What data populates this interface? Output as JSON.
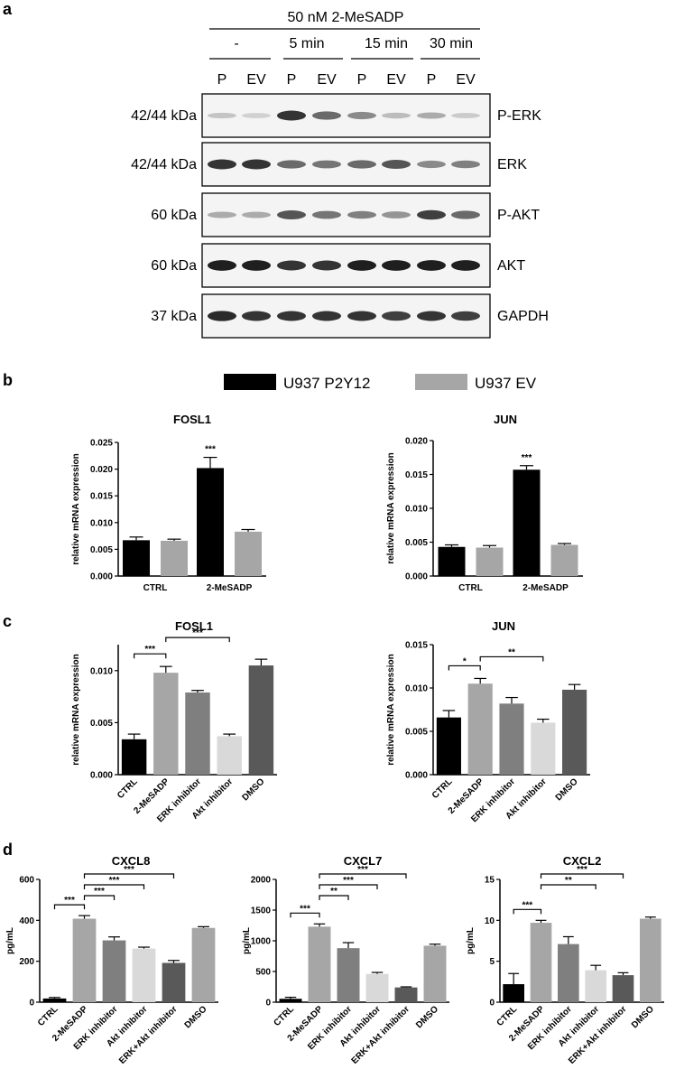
{
  "panels": {
    "a": "a",
    "b": "b",
    "c": "c",
    "d": "d"
  },
  "blot": {
    "treatment_header": "50 nM 2-MeSADP",
    "timepoints": [
      "-",
      "5 min",
      "15 min",
      "30 min"
    ],
    "lanes": [
      "P",
      "EV",
      "P",
      "EV",
      "P",
      "EV",
      "P",
      "EV"
    ],
    "rows": [
      {
        "size": "42/44 kDa",
        "protein": "P-ERK",
        "intensities": [
          0.18,
          0.12,
          0.85,
          0.6,
          0.45,
          0.22,
          0.3,
          0.15
        ]
      },
      {
        "size": "42/44 kDa",
        "protein": "ERK",
        "intensities": [
          0.85,
          0.85,
          0.6,
          0.55,
          0.6,
          0.7,
          0.45,
          0.5
        ]
      },
      {
        "size": "60 kDa",
        "protein": "P-AKT",
        "intensities": [
          0.3,
          0.3,
          0.7,
          0.55,
          0.5,
          0.4,
          0.8,
          0.6
        ]
      },
      {
        "size": "60 kDa",
        "protein": "AKT",
        "intensities": [
          0.95,
          0.95,
          0.85,
          0.85,
          0.95,
          0.95,
          0.95,
          0.95
        ]
      },
      {
        "size": "37 kDa",
        "protein": "GAPDH",
        "intensities": [
          0.9,
          0.85,
          0.85,
          0.85,
          0.85,
          0.8,
          0.85,
          0.8
        ]
      }
    ]
  },
  "legend": [
    {
      "label": "U937 P2Y12",
      "color": "#000000"
    },
    {
      "label": "U937 EV",
      "color": "#a6a6a6"
    }
  ],
  "chart_data": [
    {
      "id": "b-fosl1",
      "type": "bar",
      "title": "FOSL1",
      "ylabel": "relative mRNA expression",
      "categories": [
        "CTRL",
        "2-MeSADP"
      ],
      "ylim": [
        0,
        0.025
      ],
      "yticks": [
        "0.000",
        "0.005",
        "0.010",
        "0.015",
        "0.020",
        "0.025"
      ],
      "series": [
        {
          "name": "U937 P2Y12",
          "color": "#000000",
          "values": [
            0.0067,
            0.0202
          ],
          "errors": [
            0.0006,
            0.002
          ]
        },
        {
          "name": "U937 EV",
          "color": "#a6a6a6",
          "values": [
            0.0066,
            0.0083
          ],
          "errors": [
            0.0003,
            0.0004
          ]
        }
      ],
      "significance": [
        {
          "category": 1,
          "label": "***"
        }
      ]
    },
    {
      "id": "b-jun",
      "type": "bar",
      "title": "JUN",
      "ylabel": "relative mRNA expression",
      "categories": [
        "CTRL",
        "2-MeSADP"
      ],
      "ylim": [
        0,
        0.02
      ],
      "yticks": [
        "0.000",
        "0.005",
        "0.010",
        "0.015",
        "0.020"
      ],
      "series": [
        {
          "name": "U937 P2Y12",
          "color": "#000000",
          "values": [
            0.0043,
            0.0157
          ],
          "errors": [
            0.0003,
            0.0006
          ]
        },
        {
          "name": "U937 EV",
          "color": "#a6a6a6",
          "values": [
            0.0042,
            0.0046
          ],
          "errors": [
            0.0003,
            0.0002
          ]
        }
      ],
      "significance": [
        {
          "category": 1,
          "label": "***"
        }
      ]
    },
    {
      "id": "c-fosl1",
      "type": "bar",
      "title": "FOSL1",
      "ylabel": "relative mRNA expression",
      "categories": [
        "CTRL",
        "2-MeSADP",
        "ERK inhibitor",
        "Akt inhibitor",
        "DMSO"
      ],
      "ylim": [
        0,
        0.0125
      ],
      "yticks": [
        "0.000",
        "0.005",
        "0.010"
      ],
      "values": [
        0.0034,
        0.0098,
        0.0079,
        0.0037,
        0.0105
      ],
      "errors": [
        0.0005,
        0.0006,
        0.0002,
        0.0002,
        0.0006
      ],
      "colors": [
        "#000000",
        "#a6a6a6",
        "#7f7f7f",
        "#d9d9d9",
        "#595959"
      ],
      "brackets": [
        {
          "from": 0,
          "to": 1,
          "label": "***"
        },
        {
          "from": 1,
          "to": 3,
          "label": "***"
        }
      ]
    },
    {
      "id": "c-jun",
      "type": "bar",
      "title": "JUN",
      "ylabel": "relative mRNA expression",
      "categories": [
        "CTRL",
        "2-MeSADP",
        "ERK inhibitor",
        "Akt inhibitor",
        "DMSO"
      ],
      "ylim": [
        0,
        0.015
      ],
      "yticks": [
        "0.000",
        "0.005",
        "0.010",
        "0.015"
      ],
      "values": [
        0.0066,
        0.0105,
        0.0082,
        0.006,
        0.0098
      ],
      "errors": [
        0.0008,
        0.0006,
        0.0007,
        0.0004,
        0.0006
      ],
      "colors": [
        "#000000",
        "#a6a6a6",
        "#7f7f7f",
        "#d9d9d9",
        "#595959"
      ],
      "brackets": [
        {
          "from": 0,
          "to": 1,
          "label": "*"
        },
        {
          "from": 1,
          "to": 3,
          "label": "**"
        }
      ]
    },
    {
      "id": "d-cxcl8",
      "type": "bar",
      "title": "CXCL8",
      "ylabel": "pg/mL",
      "categories": [
        "CTRL",
        "2-MeSADP",
        "ERK inhibitor",
        "Akt inhibitor",
        "ERK+Akt inhibitor",
        "DMSO"
      ],
      "ylim": [
        0,
        600
      ],
      "yticks": [
        "0",
        "200",
        "400",
        "600"
      ],
      "values": [
        18,
        408,
        302,
        262,
        192,
        363
      ],
      "errors": [
        5,
        15,
        17,
        7,
        12,
        6
      ],
      "colors": [
        "#000000",
        "#a6a6a6",
        "#7f7f7f",
        "#d9d9d9",
        "#595959",
        "#a6a6a6"
      ],
      "brackets": [
        {
          "from": 0,
          "to": 1,
          "label": "***"
        },
        {
          "from": 1,
          "to": 2,
          "label": "***"
        },
        {
          "from": 1,
          "to": 3,
          "label": "***"
        },
        {
          "from": 1,
          "to": 4,
          "label": "***"
        }
      ]
    },
    {
      "id": "d-cxcl7",
      "type": "bar",
      "title": "CXCL7",
      "ylabel": "pg/mL",
      "categories": [
        "CTRL",
        "2-MeSADP",
        "ERK inhibitor",
        "Akt inhibitor",
        "ERK+Akt inhibitor",
        "DMSO"
      ],
      "ylim": [
        0,
        2000
      ],
      "yticks": [
        "0",
        "500",
        "1000",
        "1500",
        "2000"
      ],
      "values": [
        55,
        1230,
        880,
        460,
        240,
        920
      ],
      "errors": [
        25,
        45,
        90,
        25,
        10,
        25
      ],
      "colors": [
        "#000000",
        "#a6a6a6",
        "#7f7f7f",
        "#d9d9d9",
        "#595959",
        "#a6a6a6"
      ],
      "brackets": [
        {
          "from": 0,
          "to": 1,
          "label": "***"
        },
        {
          "from": 1,
          "to": 2,
          "label": "**"
        },
        {
          "from": 1,
          "to": 3,
          "label": "***"
        },
        {
          "from": 1,
          "to": 4,
          "label": "***"
        }
      ]
    },
    {
      "id": "d-cxcl2",
      "type": "bar",
      "title": "CXCL2",
      "ylabel": "pg/mL",
      "categories": [
        "CTRL",
        "2-MeSADP",
        "ERK inhibitor",
        "Akt inhibitor",
        "ERK+Akt inhibitor",
        "DMSO"
      ],
      "ylim": [
        0,
        15
      ],
      "yticks": [
        "0",
        "5",
        "10",
        "15"
      ],
      "values": [
        2.2,
        9.7,
        7.1,
        3.9,
        3.3,
        10.2
      ],
      "errors": [
        1.3,
        0.3,
        0.9,
        0.6,
        0.3,
        0.2
      ],
      "colors": [
        "#000000",
        "#a6a6a6",
        "#7f7f7f",
        "#d9d9d9",
        "#595959",
        "#a6a6a6"
      ],
      "brackets": [
        {
          "from": 0,
          "to": 1,
          "label": "***"
        },
        {
          "from": 1,
          "to": 3,
          "label": "**"
        },
        {
          "from": 1,
          "to": 4,
          "label": "***"
        }
      ]
    }
  ]
}
